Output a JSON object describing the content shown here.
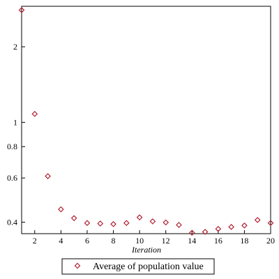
{
  "chart_data": {
    "type": "scatter",
    "xlabel": "Iteration",
    "ylabel": "",
    "xlim": [
      1,
      20
    ],
    "ylim": [
      0.36,
      2.9
    ],
    "yscale": "log",
    "x_ticks": [
      2,
      4,
      6,
      8,
      10,
      12,
      14,
      16,
      18,
      20
    ],
    "y_ticks": [
      0.4,
      0.6,
      0.8,
      1,
      2
    ],
    "grid": false,
    "legend_position": "bottom",
    "marker": "diamond",
    "marker_color": "#b22234",
    "series": [
      {
        "name": "Average of population value",
        "x": [
          1,
          2,
          3,
          4,
          5,
          6,
          7,
          8,
          9,
          10,
          11,
          12,
          13,
          14,
          15,
          16,
          17,
          18,
          19,
          20
        ],
        "y": [
          2.8,
          1.08,
          0.61,
          0.45,
          0.415,
          0.397,
          0.395,
          0.393,
          0.397,
          0.418,
          0.403,
          0.399,
          0.39,
          0.363,
          0.366,
          0.376,
          0.383,
          0.388,
          0.408,
          0.397
        ]
      }
    ]
  }
}
